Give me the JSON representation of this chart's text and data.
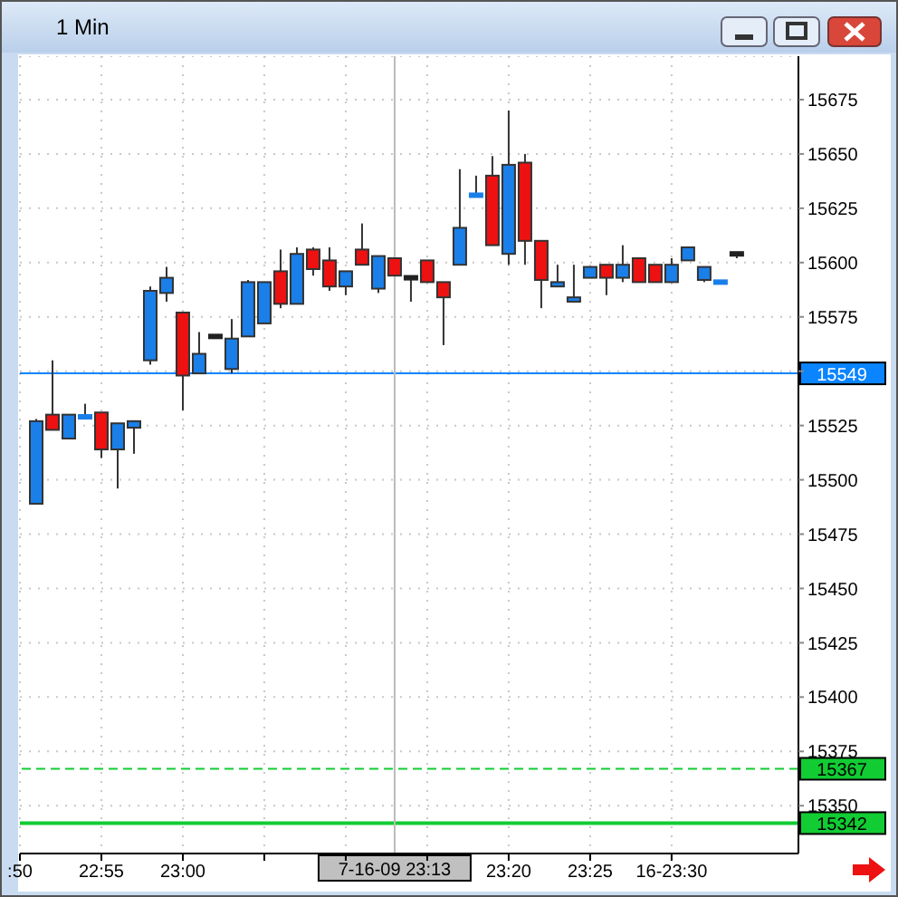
{
  "chart_data": {
    "type": "candlestick",
    "title": "1 Min",
    "x": [
      "--07-16T22:51",
      "--07-16T22:52",
      "--07-16T22:53",
      "--07-16T22:54",
      "--07-16T22:55",
      "--07-16T22:56",
      "--07-16T22:57",
      "--07-16T22:58",
      "--07-16T22:59",
      "--07-16T23:00",
      "--07-16T23:01",
      "--07-16T23:02",
      "--07-16T23:03",
      "--07-16T23:04",
      "--07-16T23:05",
      "--07-16T23:06",
      "--07-16T23:07",
      "--07-16T23:08",
      "--07-16T23:09",
      "--07-16T23:10",
      "--07-16T23:11",
      "--07-16T23:12",
      "--07-16T23:13",
      "--07-16T23:14",
      "--07-16T23:15",
      "--07-16T23:16",
      "--07-16T23:17",
      "--07-16T23:18",
      "--07-16T23:19",
      "--07-16T23:20",
      "--07-16T23:21",
      "--07-16T23:22",
      "--07-16T23:23",
      "--07-16T23:24",
      "--07-16T23:25",
      "--07-16T23:26",
      "--07-16T23:27",
      "--07-16T23:28",
      "--07-16T23:29",
      "--07-16T23:30",
      "--07-16T23:31",
      "--07-16T23:32",
      "--07-16T23:33",
      "--07-16T23:34"
    ],
    "ohlc": [
      [
        15489,
        15528,
        15489,
        15527
      ],
      [
        15530,
        15555,
        15523,
        15523
      ],
      [
        15519,
        15530,
        15519,
        15530
      ],
      [
        15529,
        15535,
        15529,
        15529
      ],
      [
        15531,
        15531,
        15510,
        15514
      ],
      [
        15514,
        15526,
        15496,
        15526
      ],
      [
        15524,
        15527,
        15512,
        15527
      ],
      [
        15555,
        15589,
        15553,
        15587
      ],
      [
        15586,
        15598,
        15582,
        15593
      ],
      [
        15577,
        15577,
        15532,
        15548
      ],
      [
        15549,
        15568,
        15549,
        15558
      ],
      [
        15566,
        15566,
        15566,
        15566
      ],
      [
        15551,
        15574,
        15549,
        15565
      ],
      [
        15566,
        15592,
        15566,
        15591
      ],
      [
        15572,
        15591,
        15572,
        15591
      ],
      [
        15596,
        15606,
        15579,
        15581
      ],
      [
        15581,
        15607,
        15581,
        15604
      ],
      [
        15606,
        15607,
        15594,
        15597
      ],
      [
        15601,
        15607,
        15587,
        15589
      ],
      [
        15589,
        15596,
        15585,
        15596
      ],
      [
        15606,
        15618,
        15599,
        15599
      ],
      [
        15588,
        15603,
        15586,
        15603
      ],
      [
        15602,
        15602,
        15594,
        15594
      ],
      [
        15593,
        15593,
        15582,
        15593
      ],
      [
        15601,
        15601,
        15591,
        15591
      ],
      [
        15591,
        15591,
        15562,
        15584
      ],
      [
        15599,
        15643,
        15599,
        15616
      ],
      [
        15631,
        15640,
        15631,
        15631
      ],
      [
        15640,
        15649,
        15608,
        15608
      ],
      [
        15604,
        15670,
        15599,
        15645
      ],
      [
        15646,
        15650,
        15599,
        15610
      ],
      [
        15610,
        15610,
        15579,
        15592
      ],
      [
        15589,
        15599,
        15589,
        15591
      ],
      [
        15582,
        15599,
        15582,
        15584
      ],
      [
        15593,
        15598,
        15593,
        15598
      ],
      [
        15599,
        15599,
        15585,
        15593
      ],
      [
        15593,
        15608,
        15591,
        15599
      ],
      [
        15602,
        15602,
        15591,
        15591
      ],
      [
        15599,
        15599,
        15591,
        15591
      ],
      [
        15591,
        15602,
        15591,
        15599
      ],
      [
        15601,
        15607,
        15601,
        15607
      ],
      [
        15592,
        15598,
        15591,
        15598
      ],
      [
        15591,
        15591,
        15591,
        15591
      ],
      [
        15604,
        15604,
        15602,
        15604
      ]
    ],
    "colors": [
      "#1a7fe8",
      "#ee1111",
      "#1a7fe8",
      "#1a7fe8",
      "#ee1111",
      "#1a7fe8",
      "#1a7fe8",
      "#1a7fe8",
      "#1a7fe8",
      "#ee1111",
      "#1a7fe8",
      "#222222",
      "#1a7fe8",
      "#1a7fe8",
      "#1a7fe8",
      "#ee1111",
      "#1a7fe8",
      "#ee1111",
      "#ee1111",
      "#1a7fe8",
      "#ee1111",
      "#1a7fe8",
      "#ee1111",
      "#222222",
      "#ee1111",
      "#ee1111",
      "#1a7fe8",
      "#1a7fe8",
      "#ee1111",
      "#1a7fe8",
      "#ee1111",
      "#ee1111",
      "#1a7fe8",
      "#1a7fe8",
      "#1a7fe8",
      "#ee1111",
      "#1a7fe8",
      "#ee1111",
      "#ee1111",
      "#1a7fe8",
      "#1a7fe8",
      "#1a7fe8",
      "#1a7fe8",
      "#222222"
    ],
    "xlim": [
      "--07-16T22:50",
      "--07-16T23:37:47"
    ],
    "xticks": [
      {
        "value": "--07-16T22:50",
        "label": ":50"
      },
      {
        "value": "--07-16T22:55",
        "label": "22:55"
      },
      {
        "value": "--07-16T23:00",
        "label": "23:00"
      },
      {
        "value": "--07-16T23:05",
        "label": null
      },
      {
        "value": "--07-16T23:10",
        "label": null
      },
      {
        "value": "--07-16T23:15",
        "label": null
      },
      {
        "value": "--07-16T23:20",
        "label": "23:20"
      },
      {
        "value": "--07-16T23:25",
        "label": "23:25"
      },
      {
        "value": "--07-16T23:30",
        "label": "16-23:30"
      }
    ],
    "ylim": [
      15328,
      15695
    ],
    "yticks": [
      15350,
      15375,
      15400,
      15425,
      15450,
      15475,
      15500,
      15525,
      {
        "value": 15550,
        "label": null
      },
      15575,
      15600,
      15625,
      15650,
      15675
    ],
    "grid": true,
    "ref_lines": [
      {
        "axis": "y",
        "value": 15549,
        "label": "15549",
        "color": "#0a84ff",
        "line_style": "solid"
      },
      {
        "axis": "y",
        "value": 15367,
        "label": "15367",
        "color": "#11cc33",
        "line_style": "dashed"
      },
      {
        "axis": "y",
        "value": 15342,
        "label": "15342",
        "color": "#11cc33",
        "line_style": "solid"
      },
      {
        "axis": "x",
        "value": "--07-16T23:13",
        "label": "7-16-09 23:13",
        "color": "#bbbbbb",
        "line_style": "solid"
      }
    ]
  }
}
